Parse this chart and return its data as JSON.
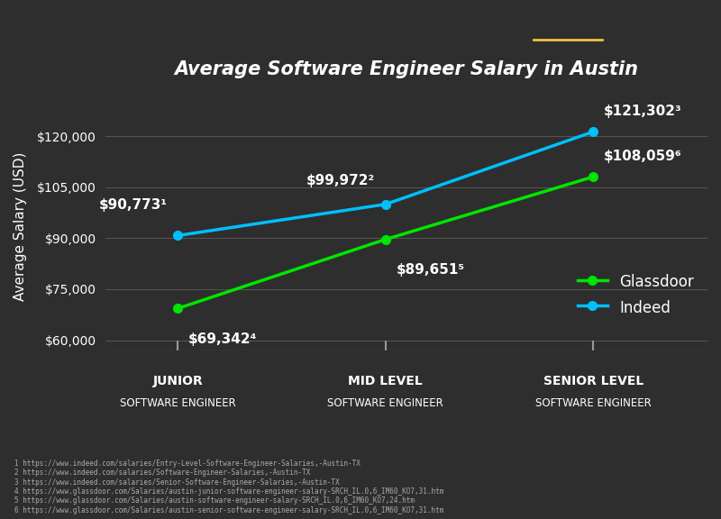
{
  "title_prefix": "Average Software Engineer Salary in ",
  "title_city": "Austin",
  "background_color": "#2e2e2e",
  "text_color": "#ffffff",
  "ylabel": "Average Salary (USD)",
  "x_categories_line1": [
    "JUNIOR",
    "MID LEVEL",
    "SENIOR LEVEL"
  ],
  "x_categories_line2": [
    "SOFTWARE ENGINEER",
    "SOFTWARE ENGINEER",
    "SOFTWARE ENGINEER"
  ],
  "x_positions": [
    0,
    1,
    2
  ],
  "indeed_values": [
    90773,
    99972,
    121302
  ],
  "glassdoor_values": [
    69342,
    89651,
    108059
  ],
  "indeed_color": "#00bfff",
  "glassdoor_color": "#00e600",
  "indeed_labels": [
    "$90,773¹",
    "$99,972²",
    "$121,302³"
  ],
  "glassdoor_labels": [
    "$69,342⁴",
    "$89,651⁵",
    "$108,059⁶"
  ],
  "ylim": [
    57000,
    130000
  ],
  "yticks": [
    60000,
    75000,
    90000,
    105000,
    120000
  ],
  "ytick_labels": [
    "$60,000",
    "$75,000",
    "$90,000",
    "$105,000",
    "$120,000"
  ],
  "underline_color": "#f0c040",
  "legend_labels": [
    "Glassdoor",
    "Indeed"
  ],
  "footnotes": [
    "1 https://www.indeed.com/salaries/Entry-Level-Software-Engineer-Salaries,-Austin-TX",
    "2 https://www.indeed.com/salaries/Software-Engineer-Salaries,-Austin-TX",
    "3 https://www.indeed.com/salaries/Senior-Software-Engineer-Salaries,-Austin-TX",
    "4 https://www.glassdoor.com/Salaries/austin-junior-software-engineer-salary-SRCH_IL.0,6_IM60_KO7,31.htm",
    "5 https://www.glassdoor.com/Salaries/austin-software-engineer-salary-SRCH_IL.0,6_IM60_KO7,24.htm",
    "6 https://www.glassdoor.com/Salaries/austin-senior-software-engineer-salary-SRCH_IL.0,6_IM60_KO7,31.htm"
  ]
}
